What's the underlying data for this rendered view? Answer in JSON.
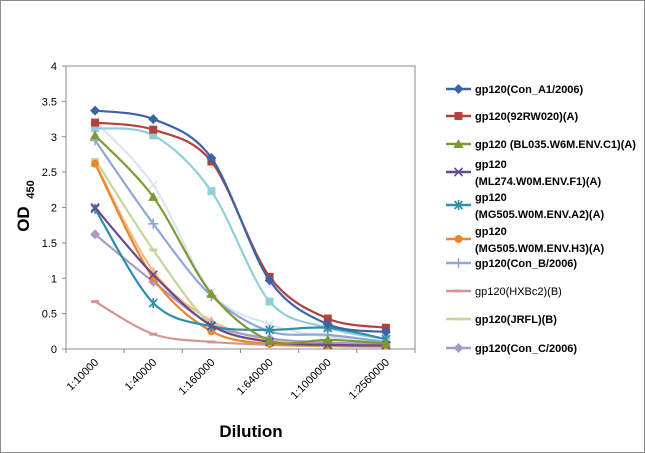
{
  "chart_data": {
    "type": "line",
    "xlabel": "Dilution",
    "ylabel": "OD",
    "ylabel_subscript": "450",
    "categories": [
      "1:10000",
      "1:40000",
      "1:160000",
      "1:640000",
      "1:1000000",
      "1:2560000"
    ],
    "ylim": [
      0,
      4
    ],
    "yticks": [
      "0",
      "0.5",
      "1",
      "1.5",
      "2",
      "2.5",
      "3",
      "3.5",
      "4"
    ],
    "grid": false,
    "legend_position": "right",
    "series": [
      {
        "name": "gp120(Con_A1/2006)",
        "legend_lines": [
          "gp120(Con_A1/2006)"
        ],
        "color": "#3A64A8",
        "marker": "diamond",
        "values": [
          3.37,
          3.25,
          2.7,
          0.97,
          0.35,
          0.24
        ]
      },
      {
        "name": "gp120(92RW020)(A)",
        "legend_lines": [
          "gp120(92RW020)(A)"
        ],
        "color": "#B2403D",
        "marker": "square",
        "values": [
          3.2,
          3.1,
          2.65,
          1.02,
          0.43,
          0.3
        ]
      },
      {
        "name": "gp120 (BL035.W6M.ENV.C1)(A)",
        "legend_lines": [
          "gp120 (BL035.W6M.ENV.C1)(A)"
        ],
        "color": "#7C9A32",
        "marker": "triangle",
        "values": [
          3.02,
          2.15,
          0.78,
          0.12,
          0.13,
          0.08
        ]
      },
      {
        "name": "gp120 (ML274.W0M.ENV.F1)(A)",
        "legend_lines": [
          "gp120",
          "(ML274.W0M.ENV.F1)(A)"
        ],
        "color": "#6A4A8E",
        "marker": "x",
        "values": [
          2.0,
          1.05,
          0.33,
          0.1,
          0.06,
          0.05
        ]
      },
      {
        "name": "gp120 (MG505.W0M.ENV.A2)(A)",
        "legend_lines": [
          "gp120",
          "(MG505.W0M.ENV.A2)(A)"
        ],
        "color": "#2E8FA8",
        "marker": "star",
        "values": [
          1.98,
          0.65,
          0.32,
          0.27,
          0.3,
          0.14
        ]
      },
      {
        "name": "gp120 (MG505.W0M.ENV.H3)(A)",
        "legend_lines": [
          "gp120",
          "(MG505.W0M.ENV.H3)(A)"
        ],
        "color": "#E8872E",
        "marker": "circle",
        "values": [
          2.62,
          1.0,
          0.25,
          0.07,
          0.05,
          0.05
        ]
      },
      {
        "name": "gp120(Con_B/2006)",
        "legend_lines": [
          "gp120(Con_B/2006)"
        ],
        "color": "#8EA8D6",
        "marker": "plus",
        "values": [
          2.95,
          1.77,
          0.75,
          0.25,
          0.2,
          0.1
        ]
      },
      {
        "name": "gp120(HXBc2)(B)",
        "legend_lines": [
          "gp120(HXBc2)(B)"
        ],
        "color": "#D79592",
        "marker": "dash",
        "plain": true,
        "values": [
          0.67,
          0.21,
          0.1,
          0.06,
          0.04,
          0.03
        ]
      },
      {
        "name": "gp120(JRFL)(B)",
        "legend_lines": [
          "gp120(JRFL)(B)"
        ],
        "color": "#C1D89A",
        "marker": "dash",
        "values": [
          2.68,
          1.4,
          0.35,
          0.1,
          0.06,
          0.05
        ]
      },
      {
        "name": "gp120(Con_C/2006)",
        "legend_lines": [
          "gp120(Con_C/2006)"
        ],
        "color": "#A99BC8",
        "marker": "diamond",
        "values": [
          1.62,
          0.95,
          0.35,
          0.15,
          0.09,
          0.07
        ]
      },
      {
        "color": "#92CDDC",
        "marker": "square",
        "values": [
          3.12,
          3.02,
          2.23,
          0.67,
          0.3,
          0.14
        ]
      },
      {
        "color": "#F9B987",
        "marker": "triangle",
        "values": [
          2.63,
          1.1,
          0.4,
          0.12,
          0.08,
          0.06
        ]
      },
      {
        "color": "#DCE4F2",
        "marker": "x",
        "values": [
          3.22,
          2.32,
          0.8,
          0.35,
          0.17,
          0.1
        ]
      }
    ]
  }
}
